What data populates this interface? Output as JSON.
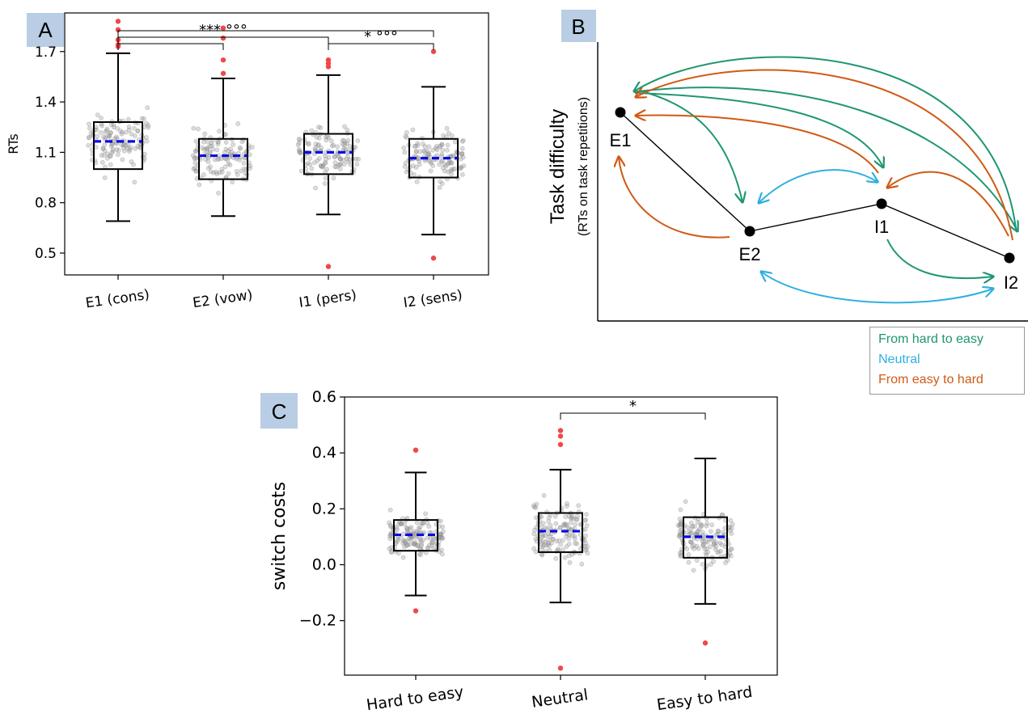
{
  "panels": {
    "a": "A",
    "b": "B",
    "c": "C"
  },
  "colors": {
    "hard_to_easy": "#1f9672",
    "neutral": "#2eb0e0",
    "easy_to_hard": "#d05a14",
    "mean_line": "#0a0ae6",
    "outlier": "#f04848",
    "jitter": "#9a9a9a"
  },
  "chart_data": [
    {
      "panel": "A",
      "type": "box",
      "title": "",
      "xlabel": "",
      "ylabel": "RTs",
      "ylim": [
        0.37,
        1.93
      ],
      "yticks": [
        "0.5",
        "0.8",
        "1.1",
        "1.4",
        "1.7"
      ],
      "categories": [
        "E1 (cons)",
        "E2 (vow)",
        "I1 (pers)",
        "I2 (sens)"
      ],
      "boxes": [
        {
          "whislo": 0.69,
          "q1": 1.0,
          "med": 1.16,
          "mean": 1.165,
          "q3": 1.28,
          "whishi": 1.69,
          "outliers": [
            1.88,
            1.83,
            1.77,
            1.74,
            1.73
          ]
        },
        {
          "whislo": 0.72,
          "q1": 0.94,
          "med": 1.08,
          "mean": 1.08,
          "q3": 1.18,
          "whishi": 1.54,
          "outliers": [
            1.84,
            1.78,
            1.65,
            1.57
          ]
        },
        {
          "whislo": 0.73,
          "q1": 0.97,
          "med": 1.09,
          "mean": 1.1,
          "q3": 1.21,
          "whishi": 1.56,
          "outliers": [
            1.65,
            1.63,
            1.61,
            0.42
          ]
        },
        {
          "whislo": 0.61,
          "q1": 0.95,
          "med": 1.06,
          "mean": 1.065,
          "q3": 1.18,
          "whishi": 1.49,
          "outliers": [
            1.7,
            0.47
          ]
        }
      ],
      "annotations": [
        {
          "from": "E1 (cons)",
          "to": "E2 (vow)",
          "text": ""
        },
        {
          "from": "E1 (cons)",
          "to": "I1 (pers)",
          "text": "*** °°°"
        },
        {
          "from": "E1 (cons)",
          "to": "I2 (sens)",
          "text": ""
        },
        {
          "from": "I1 (pers)",
          "to": "I2 (sens)",
          "text": "*  °°°"
        }
      ]
    },
    {
      "panel": "C",
      "type": "box",
      "title": "",
      "xlabel": "",
      "ylabel": "switch costs",
      "ylim": [
        -0.395,
        0.6
      ],
      "yticks": [
        "−0.2",
        "0.0",
        "0.2",
        "0.4",
        "0.6"
      ],
      "categories": [
        "Hard to easy",
        "Neutral",
        "Easy to hard"
      ],
      "boxes": [
        {
          "whislo": -0.11,
          "q1": 0.05,
          "med": 0.1,
          "mean": 0.107,
          "q3": 0.16,
          "whishi": 0.33,
          "outliers": [
            0.41,
            -0.165
          ]
        },
        {
          "whislo": -0.135,
          "q1": 0.045,
          "med": 0.115,
          "mean": 0.12,
          "q3": 0.185,
          "whishi": 0.34,
          "outliers": [
            0.48,
            0.46,
            0.43,
            -0.37
          ]
        },
        {
          "whislo": -0.14,
          "q1": 0.025,
          "med": 0.095,
          "mean": 0.1,
          "q3": 0.17,
          "whishi": 0.38,
          "outliers": [
            -0.28
          ]
        }
      ],
      "annotations": [
        {
          "from": "Neutral",
          "to": "Easy to hard",
          "text": "*"
        }
      ]
    },
    {
      "panel": "B",
      "type": "diagram",
      "ylabel": "Task difficulty",
      "ylabel_sub": "(RTs on task repetitions)",
      "nodes": [
        "E1",
        "E2",
        "I1",
        "I2"
      ],
      "legend": [
        "From hard to easy",
        "Neutral",
        "From easy to hard"
      ]
    }
  ]
}
